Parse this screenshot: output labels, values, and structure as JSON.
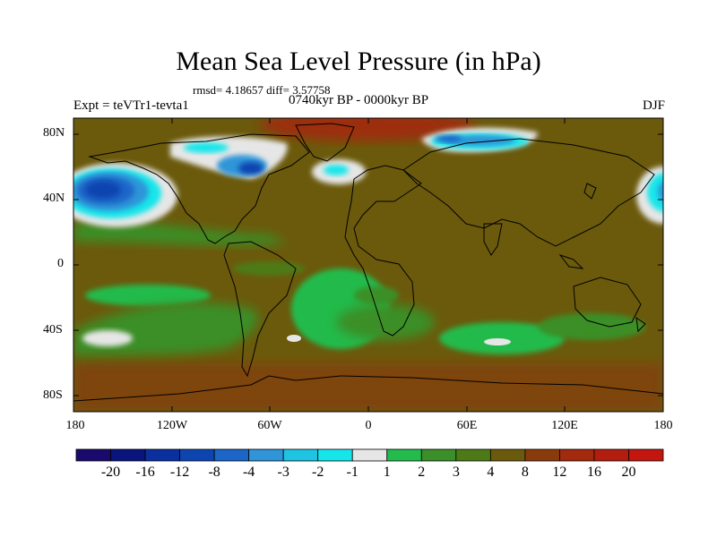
{
  "title": "Mean Sea Level Pressure (in hPa)",
  "stats": "rmsd= 4.18657 diff= 3.57758",
  "experiment": "Expt = teVTr1-tevta1",
  "period": "0740kyr BP - 0000kyr BP",
  "season": "DJF",
  "lat_labels": [
    "80N",
    "40N",
    "0",
    "40S",
    "80S"
  ],
  "lon_labels": [
    "180",
    "120W",
    "60W",
    "0",
    "60E",
    "120E",
    "180"
  ],
  "colorbar": {
    "labels": [
      "-20",
      "-16",
      "-12",
      "-8",
      "-4",
      "-3",
      "-2",
      "-1",
      "1",
      "2",
      "3",
      "4",
      "8",
      "12",
      "16",
      "20"
    ],
    "colors": [
      "#1a0a6e",
      "#0a147d",
      "#0a2f9e",
      "#0c45b0",
      "#1b66c8",
      "#2f95d8",
      "#1ec4e2",
      "#16e6ea",
      "#e6e6e6",
      "#22bb4c",
      "#3a8f28",
      "#4d7a17",
      "#6b5a0c",
      "#8a3b0b",
      "#a32a0c",
      "#b31d0d",
      "#c3160f"
    ]
  },
  "colors": {
    "background_field": "#6b5a0c",
    "land_outline": "#000000"
  }
}
